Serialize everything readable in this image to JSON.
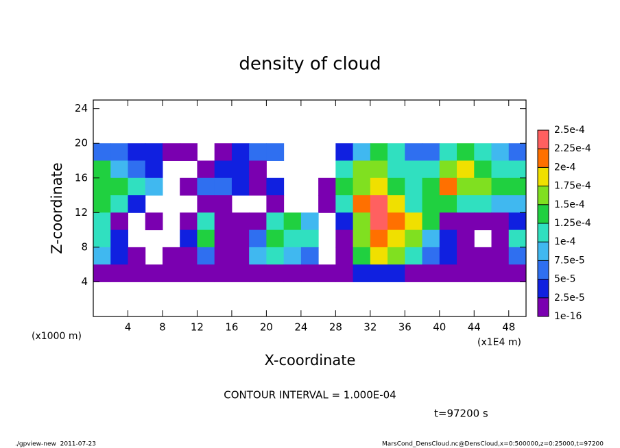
{
  "chart_data": {
    "type": "heatmap",
    "title": "density of cloud",
    "x_label": "X-coordinate",
    "y_label": "Z-coordinate",
    "x_unit_left": "(x1000 m)",
    "x_unit_right": "(x1E4 m)",
    "contour_interval": "CONTOUR INTERVAL = 1.000E-04",
    "time": "t=97200 s",
    "footer_left": "./gpview-new  2011-07-23",
    "footer_right": "MarsCond_DensCloud.nc@DensCloud,x=0:500000,z=0:25000,t=97200",
    "xlim": [
      0,
      50
    ],
    "xticks": [
      4,
      8,
      12,
      16,
      20,
      24,
      28,
      32,
      36,
      40,
      44,
      48
    ],
    "ylim": [
      0,
      25
    ],
    "yticks": [
      4,
      8,
      12,
      16,
      20,
      24
    ],
    "x": [
      1,
      3,
      5,
      7,
      9,
      11,
      13,
      15,
      17,
      19,
      21,
      23,
      25,
      27,
      29,
      31,
      33,
      35,
      37,
      39,
      41,
      43,
      45,
      47,
      49
    ],
    "y": [
      19,
      17,
      15,
      13,
      11,
      9,
      7,
      5
    ],
    "values": [
      [
        6e-05,
        5e-05,
        4e-05,
        3e-05,
        2e-05,
        1e-05,
        null,
        2e-05,
        4e-05,
        6e-05,
        5e-05,
        null,
        null,
        null,
        3e-05,
        9e-05,
        0.00013,
        0.00011,
        6e-05,
        7e-05,
        0.00012,
        0.00014,
        0.00011,
        8e-05,
        6e-05
      ],
      [
        0.00013,
        8e-05,
        5e-05,
        4e-05,
        null,
        null,
        2e-05,
        3e-05,
        4e-05,
        2e-05,
        null,
        null,
        null,
        null,
        0.00012,
        0.00016,
        0.00017,
        0.00012,
        0.00011,
        0.0001,
        0.00016,
        0.00019,
        0.00014,
        0.00012,
        0.00012
      ],
      [
        0.00014,
        0.00013,
        0.00012,
        8e-05,
        null,
        2e-05,
        5e-05,
        6e-05,
        3e-05,
        2e-05,
        4e-05,
        null,
        null,
        2e-05,
        0.00013,
        0.00017,
        0.00019,
        0.00014,
        0.00012,
        0.00013,
        0.00021,
        0.00016,
        0.00015,
        0.00014,
        0.00013
      ],
      [
        0.00014,
        0.00012,
        3e-05,
        null,
        null,
        null,
        2e-05,
        2e-05,
        null,
        null,
        1e-05,
        null,
        null,
        1e-05,
        0.0001,
        0.00022,
        0.00023,
        0.00019,
        0.00012,
        0.00014,
        0.00013,
        0.00011,
        0.0001,
        9e-05,
        8e-05
      ],
      [
        0.00012,
        1e-05,
        null,
        1e-05,
        null,
        1e-05,
        0.00011,
        1e-05,
        1e-05,
        2e-05,
        0.00012,
        0.00013,
        8e-05,
        null,
        4e-05,
        0.00017,
        0.00023,
        0.00022,
        0.00019,
        0.00014,
        1e-05,
        1e-05,
        1e-05,
        2e-05,
        3e-05
      ],
      [
        0.00011,
        3e-05,
        null,
        null,
        null,
        4e-05,
        0.00014,
        1e-05,
        1e-05,
        6e-05,
        0.00014,
        0.00012,
        0.0001,
        null,
        2e-05,
        0.00015,
        0.0002,
        0.00019,
        0.00015,
        8e-05,
        3e-05,
        2e-05,
        null,
        1e-05,
        0.00012
      ],
      [
        8e-05,
        4e-05,
        1e-05,
        null,
        1e-05,
        2e-05,
        6e-05,
        1e-05,
        2e-05,
        8e-05,
        0.00011,
        9e-05,
        5e-05,
        null,
        1e-05,
        0.00013,
        0.00018,
        0.00017,
        0.00012,
        7e-05,
        3e-05,
        1e-05,
        1e-05,
        2e-05,
        6e-05
      ],
      [
        2e-05,
        1e-05,
        1e-05,
        1e-05,
        1e-05,
        1e-05,
        2e-05,
        1e-05,
        1e-05,
        1e-05,
        2e-05,
        1e-05,
        1e-05,
        1e-05,
        1e-05,
        3e-05,
        4e-05,
        3e-05,
        2e-05,
        1e-05,
        1e-05,
        1e-05,
        1e-05,
        1e-05,
        1e-05
      ]
    ],
    "colorbar": {
      "ticks": [
        1e-16,
        {
          "value": 2.5e-05,
          "label": "2.5e-5"
        },
        {
          "value": 5e-05,
          "label": "5e-5"
        },
        {
          "value": 7.5e-05,
          "label": "7.5e-5"
        },
        {
          "value": 0.0001,
          "label": "1e-4"
        },
        {
          "value": 0.000125,
          "label": "1.25e-4"
        },
        {
          "value": 0.00015,
          "label": "1.5e-4"
        },
        {
          "value": 0.000175,
          "label": "1.75e-4"
        },
        {
          "value": 0.0002,
          "label": "2e-4"
        },
        {
          "value": 0.000225,
          "label": "2.25e-4"
        },
        {
          "value": 0.00025,
          "label": "2.5e-4"
        }
      ],
      "colors": [
        "#7a00b0",
        "#1020e0",
        "#2f6ff0",
        "#40b8f0",
        "#30e0c0",
        "#20d040",
        "#80e020",
        "#f0e000",
        "#ff7000",
        "#ff6060"
      ]
    }
  }
}
